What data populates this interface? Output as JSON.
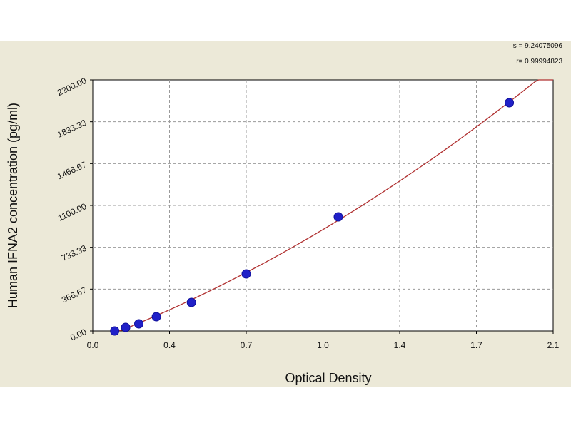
{
  "stats": {
    "s_line": "s = 9.24075096",
    "r_line": "r= 0.99994823"
  },
  "chart_data": {
    "type": "scatter",
    "title": "",
    "xlabel": "Optical Density",
    "ylabel": "Human IFNA2 concentration (pg/ml)",
    "xlim": [
      0.0,
      2.1
    ],
    "ylim": [
      0.0,
      2200.0
    ],
    "x_ticks": [
      "0.0",
      "0.4",
      "0.7",
      "1.0",
      "1.4",
      "1.7",
      "2.1"
    ],
    "x_tick_values": [
      0.0,
      0.35,
      0.7,
      1.05,
      1.4,
      1.75,
      2.1
    ],
    "y_ticks": [
      "0.00",
      "366.67",
      "733.33",
      "1100.00",
      "1466.67",
      "1833.33",
      "2200.00"
    ],
    "y_tick_values": [
      0.0,
      366.67,
      733.33,
      1100.0,
      1466.67,
      1833.33,
      2200.0
    ],
    "grid": true,
    "series": [
      {
        "points": [
          {
            "x": 0.1,
            "y": 0
          },
          {
            "x": 0.15,
            "y": 31.25
          },
          {
            "x": 0.21,
            "y": 62.5
          },
          {
            "x": 0.29,
            "y": 125
          },
          {
            "x": 0.45,
            "y": 250
          },
          {
            "x": 0.7,
            "y": 500
          },
          {
            "x": 1.12,
            "y": 1000
          },
          {
            "x": 1.9,
            "y": 2000
          }
        ]
      }
    ],
    "colors": {
      "curve": "#b03030",
      "point": "#2020c8",
      "point_edge": "#10109a",
      "grid": "#9a9a9a",
      "plot_bg": "#ffffff",
      "frame_bg": "#ece9d8"
    }
  }
}
